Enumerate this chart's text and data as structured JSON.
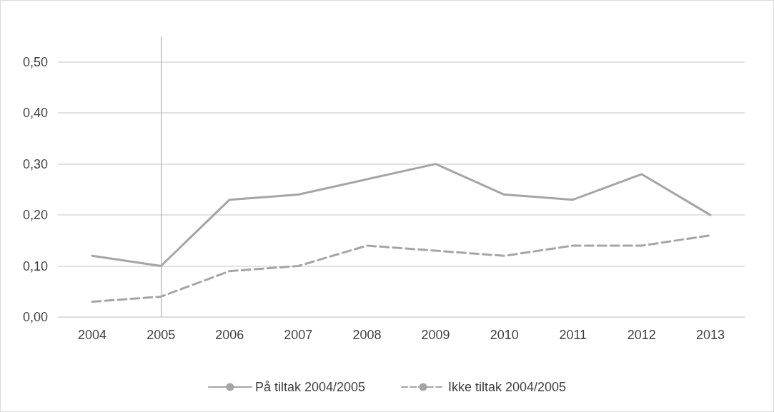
{
  "chart_data": {
    "type": "line",
    "categories": [
      "2004",
      "2005",
      "2006",
      "2007",
      "2008",
      "2009",
      "2010",
      "2011",
      "2012",
      "2013"
    ],
    "series": [
      {
        "name": "På tiltak 2004/2005",
        "color": "#a5a5a5",
        "line_style": "solid",
        "values": [
          0.12,
          0.1,
          0.23,
          0.24,
          0.27,
          0.3,
          0.24,
          0.23,
          0.28,
          0.2
        ]
      },
      {
        "name": "Ikke tiltak 2004/2005",
        "color": "#a5a5a5",
        "line_style": "dashed",
        "values": [
          0.03,
          0.04,
          0.09,
          0.1,
          0.14,
          0.13,
          0.12,
          0.14,
          0.14,
          0.16
        ]
      }
    ],
    "ylim": [
      0,
      0.55
    ],
    "yticks": [
      {
        "value": 0,
        "label": "0,00"
      },
      {
        "value": 0.1,
        "label": "0,10"
      },
      {
        "value": 0.2,
        "label": "0,20"
      },
      {
        "value": 0.3,
        "label": "0,30"
      },
      {
        "value": 0.4,
        "label": "0,40"
      },
      {
        "value": 0.5,
        "label": "0,50"
      }
    ],
    "ref_lines": [
      {
        "axis": "x",
        "value": "2005",
        "color": "#a5a5a5",
        "line_style": "solid"
      }
    ],
    "grid": "y",
    "legend": "bottom",
    "marker": "none"
  }
}
